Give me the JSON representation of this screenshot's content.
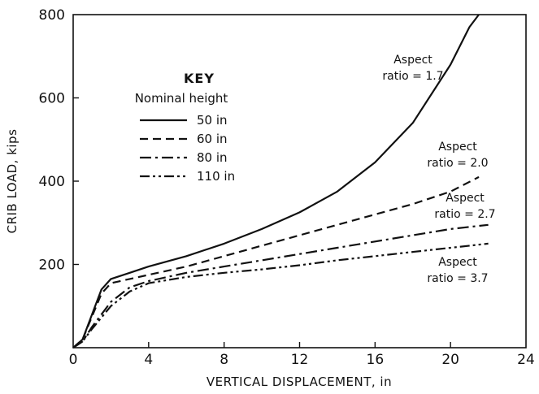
{
  "chart_data": {
    "type": "line",
    "title": "",
    "xlabel": "VERTICAL DISPLACEMENT, in",
    "ylabel": "CRIB LOAD, kips",
    "xlim": [
      0,
      24
    ],
    "ylim": [
      0,
      800
    ],
    "x_ticks": [
      0,
      4,
      8,
      12,
      16,
      20,
      24
    ],
    "y_ticks": [
      200,
      400,
      600,
      800
    ],
    "x_tick_labels": [
      "0",
      "4",
      "8",
      "12",
      "16",
      "20",
      "24"
    ],
    "y_tick_labels": [
      "200",
      "400",
      "600",
      "800"
    ],
    "grid": false,
    "legend": {
      "title": "KEY",
      "subtitle": "Nominal height",
      "placement": "upper-left",
      "entries": [
        "50 in",
        "60 in",
        "80 in",
        "110 in"
      ]
    },
    "series": [
      {
        "name": "50 in",
        "style": "solid",
        "annotation": [
          "Aspect",
          "ratio = 1.7"
        ],
        "points": [
          [
            0,
            0
          ],
          [
            0.5,
            20
          ],
          [
            1,
            80
          ],
          [
            1.5,
            140
          ],
          [
            2,
            165
          ],
          [
            3,
            180
          ],
          [
            4,
            195
          ],
          [
            6,
            220
          ],
          [
            8,
            250
          ],
          [
            10,
            285
          ],
          [
            12,
            325
          ],
          [
            14,
            375
          ],
          [
            16,
            445
          ],
          [
            18,
            540
          ],
          [
            20,
            680
          ],
          [
            21,
            770
          ],
          [
            21.5,
            800
          ]
        ]
      },
      {
        "name": "60 in",
        "style": "dashed",
        "annotation": [
          "Aspect",
          "ratio = 2.0"
        ],
        "points": [
          [
            0,
            0
          ],
          [
            0.5,
            20
          ],
          [
            1,
            75
          ],
          [
            1.5,
            130
          ],
          [
            2,
            155
          ],
          [
            3,
            165
          ],
          [
            4,
            175
          ],
          [
            6,
            195
          ],
          [
            8,
            220
          ],
          [
            10,
            245
          ],
          [
            12,
            270
          ],
          [
            14,
            295
          ],
          [
            16,
            320
          ],
          [
            18,
            345
          ],
          [
            20,
            375
          ],
          [
            21.5,
            410
          ]
        ]
      },
      {
        "name": "80 in",
        "style": "dashdot",
        "annotation": [
          "Aspect",
          "ratio = 2.7"
        ],
        "points": [
          [
            0,
            0
          ],
          [
            0.5,
            15
          ],
          [
            1,
            50
          ],
          [
            2,
            110
          ],
          [
            3,
            145
          ],
          [
            4,
            160
          ],
          [
            6,
            180
          ],
          [
            8,
            195
          ],
          [
            10,
            210
          ],
          [
            12,
            225
          ],
          [
            14,
            240
          ],
          [
            16,
            255
          ],
          [
            18,
            270
          ],
          [
            20,
            285
          ],
          [
            22,
            295
          ]
        ]
      },
      {
        "name": "110 in",
        "style": "dashdotdot",
        "annotation": [
          "Aspect",
          "ratio = 3.7"
        ],
        "points": [
          [
            0,
            0
          ],
          [
            0.5,
            15
          ],
          [
            1,
            45
          ],
          [
            2,
            100
          ],
          [
            3,
            135
          ],
          [
            4,
            155
          ],
          [
            6,
            170
          ],
          [
            8,
            180
          ],
          [
            10,
            188
          ],
          [
            12,
            198
          ],
          [
            14,
            210
          ],
          [
            16,
            220
          ],
          [
            18,
            230
          ],
          [
            20,
            240
          ],
          [
            22,
            250
          ]
        ]
      }
    ]
  }
}
